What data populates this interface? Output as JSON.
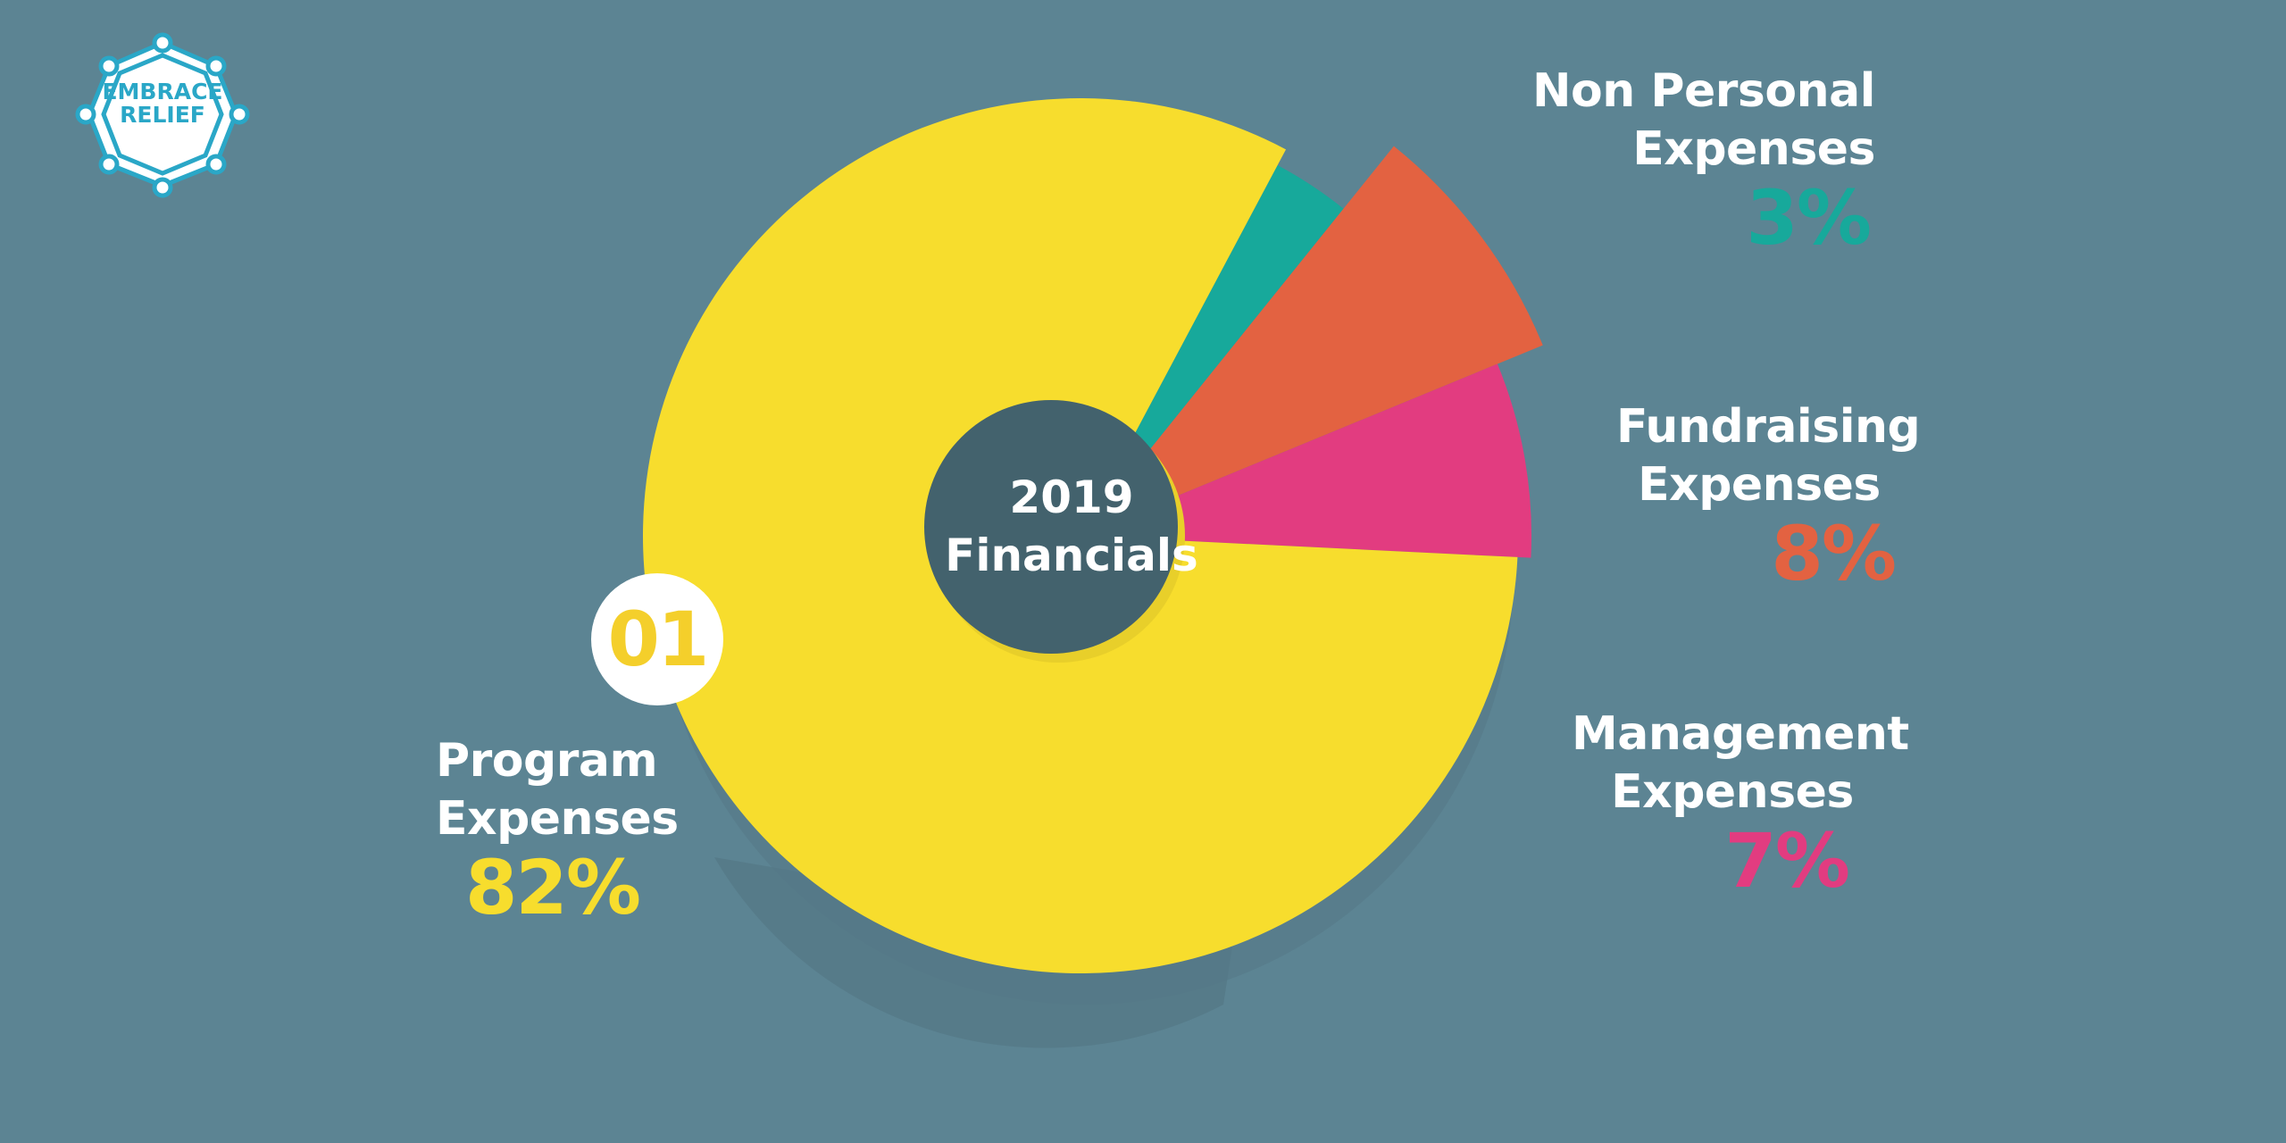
{
  "brand": {
    "logo_line1": "EMBRACE",
    "logo_line2": "RELIEF",
    "logo_color": "#2aa7c7"
  },
  "badge": "01",
  "center": {
    "year": "2019",
    "word": "Financials"
  },
  "colors": {
    "background": "#5c8493",
    "center_disc": "#43626d",
    "label_text": "#ffffff"
  },
  "chart_data": {
    "type": "pie",
    "title": "2019 Financials",
    "donut": true,
    "slices": [
      {
        "name_line1": "Program",
        "name_line2": "Expenses",
        "label": "82%",
        "value": 82,
        "color": "#f7dd2d"
      },
      {
        "name_line1": "Non Personal Expenses",
        "name_line2": "",
        "label": "3%",
        "value": 3,
        "color": "#17a99b"
      },
      {
        "name_line1": "Fundraising",
        "name_line2": "Expenses",
        "label": "8%",
        "value": 8,
        "color": "#e36241"
      },
      {
        "name_line1": "Management",
        "name_line2": "Expenses",
        "label": "7%",
        "value": 7,
        "color": "#e23c80"
      }
    ]
  }
}
